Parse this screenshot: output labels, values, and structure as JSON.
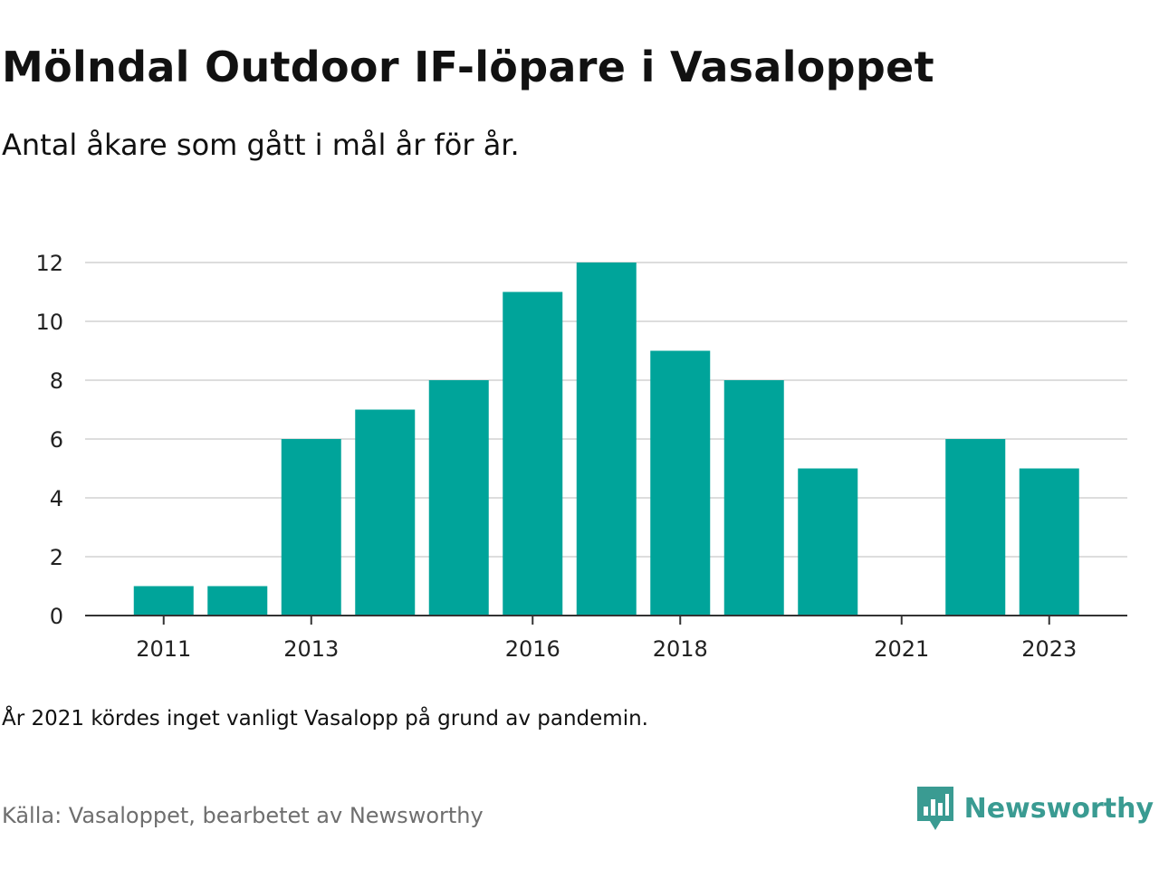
{
  "header": {
    "title": "Mölndal Outdoor IF-löpare i Vasaloppet",
    "subtitle": "Antal åkare som gått i mål år för år."
  },
  "footer": {
    "note": "År 2021 kördes inget vanligt Vasalopp på grund av pandemin.",
    "source": "Källa: Vasaloppet, bearbetet av Newsworthy",
    "brand": "Newsworthy"
  },
  "colors": {
    "bar": "#00a49a",
    "grid": "#dddddd",
    "axis": "#333333",
    "brand": "#3a9b92"
  },
  "chart_data": {
    "type": "bar",
    "categories": [
      "2011",
      "2012",
      "2013",
      "2014",
      "2015",
      "2016",
      "2017",
      "2018",
      "2019",
      "2020",
      "2021",
      "2022",
      "2023"
    ],
    "values": [
      1,
      1,
      6,
      7,
      8,
      11,
      12,
      9,
      8,
      5,
      0,
      6,
      5
    ],
    "x_tick_labels": [
      "2011",
      "2013",
      "2016",
      "2018",
      "2021",
      "2023"
    ],
    "y_ticks": [
      0,
      2,
      4,
      6,
      8,
      10,
      12
    ],
    "ylim": [
      0,
      12
    ],
    "grid": true,
    "legend": "none"
  }
}
